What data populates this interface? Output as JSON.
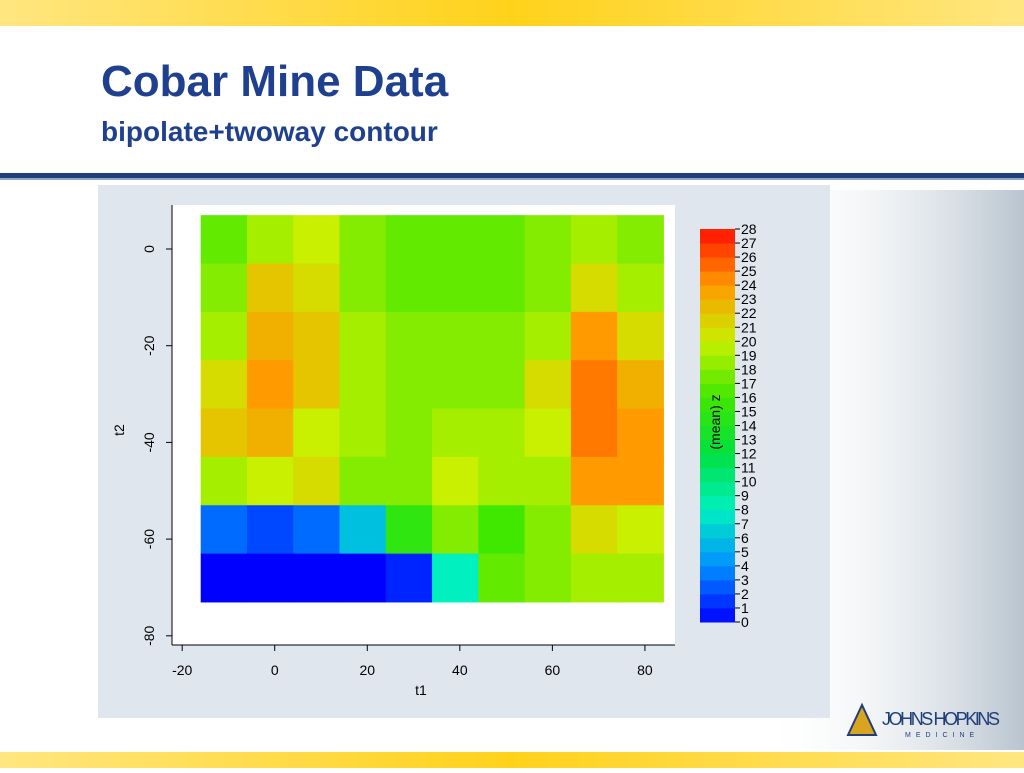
{
  "slide": {
    "title": "Cobar Mine Data",
    "subtitle": "bipolate+twoway contour",
    "logo": {
      "name": "JOHNS HOPKINS",
      "sub": "MEDICINE"
    }
  },
  "chart_data": {
    "type": "contour",
    "xlabel": "t1",
    "ylabel": "t2",
    "zlabel": "(mean) z",
    "x": [
      -11,
      -1,
      9,
      19,
      29,
      39,
      49,
      59,
      69,
      79
    ],
    "y": [
      2,
      -8,
      -18,
      -28,
      -38,
      -48,
      -58,
      -68
    ],
    "z": [
      [
        17,
        19,
        20,
        18,
        17,
        17,
        17,
        18,
        19,
        18
      ],
      [
        18,
        22,
        21,
        18,
        17,
        17,
        17,
        18,
        21,
        19
      ],
      [
        19,
        23,
        22,
        19,
        18,
        18,
        18,
        19,
        24,
        21
      ],
      [
        21,
        24,
        22,
        19,
        18,
        18,
        18,
        21,
        25,
        23
      ],
      [
        22,
        23,
        20,
        19,
        18,
        19,
        19,
        20,
        25,
        24
      ],
      [
        19,
        20,
        21,
        18,
        18,
        20,
        19,
        19,
        24,
        24
      ],
      [
        3,
        2,
        3,
        6,
        15,
        18,
        16,
        18,
        21,
        20
      ],
      [
        0,
        0,
        0,
        0,
        1,
        8,
        17,
        18,
        19,
        19
      ]
    ],
    "xlim": [
      -22.2,
      86.5
    ],
    "xticks": [
      -20,
      0,
      20,
      40,
      60,
      80
    ],
    "ylim": [
      -81.9,
      9.1
    ],
    "yticks": [
      0,
      -20,
      -40,
      -60,
      -80
    ],
    "zlim": [
      0,
      28
    ],
    "zticks": [
      0,
      1,
      2,
      3,
      4,
      5,
      6,
      7,
      8,
      9,
      10,
      11,
      12,
      13,
      14,
      15,
      16,
      17,
      18,
      19,
      20,
      21,
      22,
      23,
      24,
      25,
      26,
      27,
      28
    ],
    "colormap": [
      "#0000ff",
      "#0090ff",
      "#00f0c0",
      "#00e040",
      "#40e800",
      "#c8f000",
      "#ff9a00",
      "#ff1000"
    ]
  }
}
